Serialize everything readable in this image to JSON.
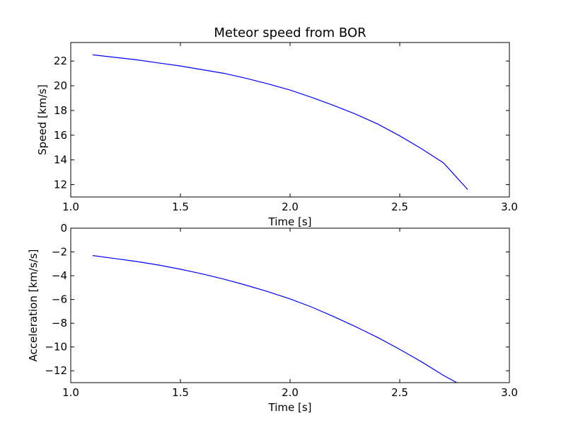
{
  "chart_data": [
    {
      "type": "line",
      "title": "Meteor speed from  BOR",
      "xlabel": "Time [s]",
      "ylabel": "Speed [km/s]",
      "xlim": [
        1.0,
        3.0
      ],
      "ylim": [
        11.0,
        23.5
      ],
      "xticks": [
        "1.0",
        "1.5",
        "2.0",
        "2.5",
        "3.0"
      ],
      "yticks": [
        "12",
        "14",
        "16",
        "18",
        "20",
        "22"
      ],
      "grid": false,
      "line_color": "#0000ff",
      "series": [
        {
          "x": [
            1.1,
            1.2,
            1.3,
            1.4,
            1.5,
            1.6,
            1.7,
            1.8,
            1.9,
            2.0,
            2.1,
            2.2,
            2.3,
            2.4,
            2.5,
            2.6,
            2.7,
            2.81
          ],
          "values": [
            22.5,
            22.3,
            22.1,
            21.85,
            21.6,
            21.3,
            21.0,
            20.6,
            20.15,
            19.65,
            19.05,
            18.4,
            17.7,
            16.9,
            15.95,
            14.9,
            13.75,
            11.6
          ]
        }
      ]
    },
    {
      "type": "line",
      "title": "",
      "xlabel": "Time [s]",
      "ylabel": "Acceleration [km/s/s]",
      "xlim": [
        1.0,
        3.0
      ],
      "ylim": [
        -13.0,
        0.0
      ],
      "xticks": [
        "1.0",
        "1.5",
        "2.0",
        "2.5",
        "3.0"
      ],
      "yticks": [
        "0",
        "−2",
        "−4",
        "−6",
        "−8",
        "−10",
        "−12"
      ],
      "grid": false,
      "line_color": "#0000ff",
      "series": [
        {
          "x": [
            1.1,
            1.2,
            1.3,
            1.4,
            1.5,
            1.6,
            1.7,
            1.8,
            1.9,
            2.0,
            2.1,
            2.2,
            2.3,
            2.4,
            2.5,
            2.6,
            2.7,
            2.76
          ],
          "values": [
            -2.3,
            -2.55,
            -2.8,
            -3.1,
            -3.45,
            -3.85,
            -4.3,
            -4.8,
            -5.35,
            -5.95,
            -6.65,
            -7.45,
            -8.3,
            -9.2,
            -10.2,
            -11.25,
            -12.4,
            -13.0
          ]
        }
      ]
    }
  ]
}
